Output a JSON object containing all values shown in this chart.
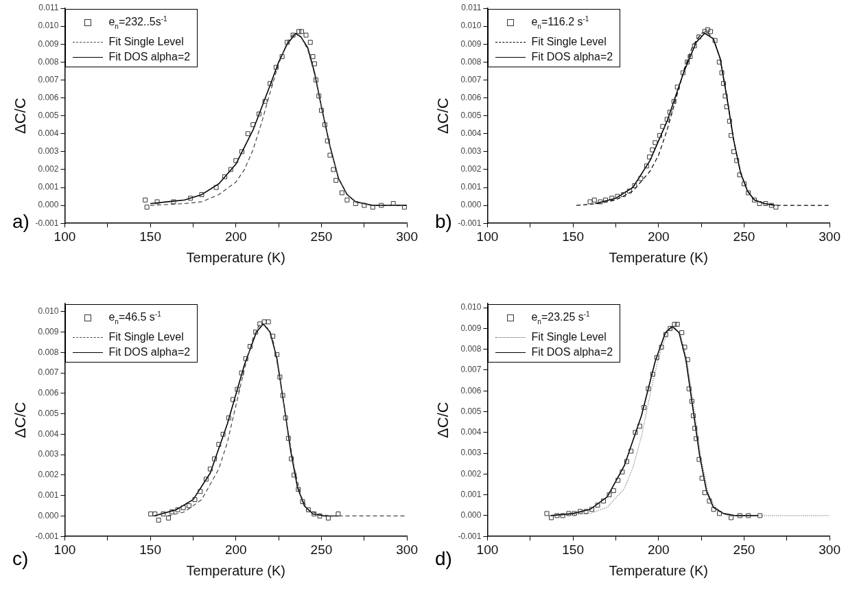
{
  "chart_data": [
    {
      "type": "scatter",
      "xlabel": "Temperature (K)",
      "ylabel": "ΔC/C",
      "annotations": [
        "a)"
      ],
      "legend": "top left",
      "grid": false,
      "xlim": [
        100,
        300
      ],
      "xticks": [
        100,
        {
          "value": 125,
          "label": null
        },
        150,
        {
          "value": 175,
          "label": null
        },
        200,
        {
          "value": 225,
          "label": null
        },
        250,
        {
          "value": 275,
          "label": null
        },
        300
      ],
      "ylim": [
        -0.001,
        0.011
      ],
      "yticks": [
        {
          "value": -0.001,
          "label": "-0.001"
        },
        {
          "value": 0,
          "label": "0.000"
        },
        {
          "value": 0.001,
          "label": "0.001"
        },
        {
          "value": 0.002,
          "label": "0.002"
        },
        {
          "value": 0.003,
          "label": "0.003"
        },
        {
          "value": 0.004,
          "label": "0.004"
        },
        {
          "value": 0.005,
          "label": "0.005"
        },
        {
          "value": 0.006,
          "label": "0.006"
        },
        {
          "value": 0.007,
          "label": "0.007"
        },
        {
          "value": 0.008,
          "label": "0.008"
        },
        {
          "value": 0.009,
          "label": "0.009"
        },
        {
          "value": 0.01,
          "label": "0.010"
        },
        {
          "value": 0.011,
          "label": "0.011"
        }
      ],
      "series": [
        {
          "name": "e$_{n}$=232..5s$^{-1}$",
          "type": "scatter",
          "marker": "square",
          "color": "#333333",
          "x": [
            147,
            148,
            154,
            163.6,
            173.5,
            180,
            188.5,
            193.5,
            197,
            200,
            203.5,
            207,
            210,
            213.5,
            217,
            220,
            223.5,
            227,
            230,
            233.4,
            236.8,
            238.4,
            241,
            243.5,
            245,
            246,
            246.8,
            248.5,
            250,
            252,
            253.5,
            255,
            257,
            258.5,
            262,
            265,
            270,
            275,
            280,
            285,
            292,
            298.5
          ],
          "values": [
            0.0003,
            -0.0001,
            0.0002,
            0.0002,
            0.0004,
            0.0006,
            0.001,
            0.0016,
            0.002,
            0.0025,
            0.003,
            0.004,
            0.0045,
            0.0051,
            0.0058,
            0.0068,
            0.0077,
            0.0083,
            0.0091,
            0.0095,
            0.0097,
            0.0097,
            0.0095,
            0.0091,
            0.0083,
            0.0079,
            0.007,
            0.0061,
            0.0053,
            0.0045,
            0.0036,
            0.0028,
            0.002,
            0.0014,
            0.0007,
            0.0003,
            0.0001,
            0,
            -0.0001,
            0,
            0.0001,
            -0.0001
          ]
        },
        {
          "name": "Fit Single Level",
          "type": "line",
          "line_style": "dashed",
          "marker": "none",
          "color": "#444444",
          "x": [
            150,
            170,
            180,
            190,
            200,
            205,
            210,
            215,
            220,
            225,
            230,
            234,
            238,
            242,
            246,
            250,
            255,
            260,
            265,
            270,
            280,
            300
          ],
          "values": [
            0,
            0.0001,
            0.0002,
            0.0006,
            0.0013,
            0.002,
            0.0031,
            0.0046,
            0.0063,
            0.0079,
            0.0091,
            0.0096,
            0.0094,
            0.0087,
            0.0073,
            0.0055,
            0.0033,
            0.0015,
            0.0006,
            0.0002,
            0,
            0
          ]
        },
        {
          "name": "Fit DOS alpha=2",
          "type": "line",
          "line_style": "solid",
          "marker": "none",
          "color": "#000000",
          "x": [
            150,
            170,
            180,
            190,
            200,
            210,
            220,
            225,
            230,
            235,
            238,
            242,
            246,
            250,
            255,
            260,
            265,
            270,
            280,
            300
          ],
          "values": [
            0.0001,
            0.0003,
            0.0006,
            0.0012,
            0.0023,
            0.0042,
            0.0067,
            0.008,
            0.009,
            0.0096,
            0.0094,
            0.0088,
            0.0074,
            0.0055,
            0.0033,
            0.0015,
            0.0006,
            0.0002,
            0,
            0
          ]
        }
      ]
    },
    {
      "type": "scatter",
      "xlabel": "Temperature (K)",
      "ylabel": "ΔC/C",
      "annotations": [
        "b)"
      ],
      "legend": "top left",
      "grid": false,
      "xlim": [
        100,
        300
      ],
      "xticks": [
        100,
        {
          "value": 125,
          "label": null
        },
        150,
        {
          "value": 175,
          "label": null
        },
        200,
        {
          "value": 225,
          "label": null
        },
        250,
        {
          "value": 275,
          "label": null
        },
        300
      ],
      "ylim": [
        -0.001,
        0.011
      ],
      "yticks": [
        {
          "value": -0.001,
          "label": "-0.001"
        },
        {
          "value": 0,
          "label": "0.000"
        },
        {
          "value": 0.001,
          "label": "0.001"
        },
        {
          "value": 0.002,
          "label": "0.002"
        },
        {
          "value": 0.003,
          "label": "0.003"
        },
        {
          "value": 0.004,
          "label": "0.004"
        },
        {
          "value": 0.005,
          "label": "0.005"
        },
        {
          "value": 0.006,
          "label": "0.006"
        },
        {
          "value": 0.007,
          "label": "0.007"
        },
        {
          "value": 0.008,
          "label": "0.008"
        },
        {
          "value": 0.009,
          "label": "0.009"
        },
        {
          "value": 0.01,
          "label": "0.010"
        },
        {
          "value": 0.011,
          "label": "0.011"
        }
      ],
      "series": [
        {
          "name": "e$_{n}$=116.2 s$^{-1}$",
          "type": "scatter",
          "marker": "square",
          "color": "#333333",
          "x": [
            160,
            162.5,
            166,
            169,
            172.7,
            176,
            179.5,
            183,
            186,
            189.6,
            193,
            194.7,
            196.4,
            198,
            200.7,
            202.4,
            205,
            206.6,
            209,
            211,
            214.3,
            216.8,
            218.5,
            221,
            223.6,
            227,
            228.7,
            230.4,
            233,
            235.5,
            237,
            238,
            239,
            239.8,
            241.5,
            242.4,
            244,
            245.7,
            247.4,
            250,
            252.5,
            256,
            259,
            262.6,
            266,
            268.6
          ],
          "values": [
            0.0002,
            0.0003,
            0.0002,
            0.0003,
            0.0004,
            0.0005,
            0.0006,
            0.0008,
            0.0011,
            0.0015,
            0.0022,
            0.0027,
            0.0031,
            0.0035,
            0.0039,
            0.0044,
            0.0048,
            0.0052,
            0.0058,
            0.0066,
            0.0074,
            0.008,
            0.0083,
            0.0089,
            0.0094,
            0.0097,
            0.0098,
            0.0097,
            0.0092,
            0.008,
            0.0074,
            0.0068,
            0.0061,
            0.0055,
            0.0047,
            0.0039,
            0.003,
            0.0025,
            0.0017,
            0.0012,
            0.0007,
            0.0003,
            0.0001,
            0.0001,
            0,
            -0.0001
          ]
        },
        {
          "name": "Fit Single Level",
          "type": "line",
          "line_style": "dashed",
          "marker": "none",
          "color": "#000000",
          "x": [
            152,
            165,
            175,
            185,
            195,
            200,
            205,
            210,
            215,
            220,
            225,
            228,
            232,
            236,
            240,
            244,
            248,
            252,
            256,
            262,
            270,
            300
          ],
          "values": [
            0,
            0.0001,
            0.0003,
            0.0008,
            0.0019,
            0.0028,
            0.0042,
            0.0059,
            0.0076,
            0.0089,
            0.0096,
            0.0097,
            0.0093,
            0.0082,
            0.006,
            0.0036,
            0.0018,
            0.0008,
            0.0003,
            0.0001,
            0,
            0
          ]
        },
        {
          "name": "Fit DOS alpha=2",
          "type": "line",
          "line_style": "solid",
          "marker": "none",
          "color": "#000000",
          "x": [
            163,
            175,
            185,
            195,
            205,
            215,
            222,
            227,
            232,
            236,
            240,
            244,
            248,
            252,
            256,
            262,
            268
          ],
          "values": [
            0.0001,
            0.0004,
            0.001,
            0.0025,
            0.0047,
            0.0075,
            0.0091,
            0.0096,
            0.0093,
            0.0082,
            0.006,
            0.0036,
            0.0018,
            0.0008,
            0.0003,
            0.0001,
            0
          ]
        }
      ]
    },
    {
      "type": "scatter",
      "xlabel": "Temperature (K)",
      "ylabel": "ΔC/C",
      "annotations": [
        "c)"
      ],
      "legend": "top left",
      "grid": false,
      "xlim": [
        100,
        300
      ],
      "xticks": [
        100,
        {
          "value": 125,
          "label": null
        },
        150,
        {
          "value": 175,
          "label": null
        },
        200,
        {
          "value": 225,
          "label": null
        },
        250,
        {
          "value": 275,
          "label": null
        },
        300
      ],
      "ylim": [
        -0.001,
        0.0104
      ],
      "yticks": [
        {
          "value": -0.001,
          "label": "-0.001"
        },
        {
          "value": 0,
          "label": "0.000"
        },
        {
          "value": 0.001,
          "label": "0.001"
        },
        {
          "value": 0.002,
          "label": "0.002"
        },
        {
          "value": 0.003,
          "label": "0.003"
        },
        {
          "value": 0.004,
          "label": "0.004"
        },
        {
          "value": 0.005,
          "label": "0.005"
        },
        {
          "value": 0.006,
          "label": "0.006"
        },
        {
          "value": 0.007,
          "label": "0.007"
        },
        {
          "value": 0.008,
          "label": "0.008"
        },
        {
          "value": 0.009,
          "label": "0.009"
        },
        {
          "value": 0.01,
          "label": "0.010"
        }
      ],
      "series": [
        {
          "name": "e$_{n}$=46.5 s$^{-1}$",
          "type": "scatter",
          "marker": "square",
          "color": "#333333",
          "x": [
            150.2,
            152.7,
            154.8,
            157.6,
            160.6,
            162.6,
            166,
            169.3,
            172.6,
            176,
            179.2,
            182.6,
            185,
            187.5,
            190,
            192.5,
            195.8,
            198.3,
            200.8,
            203.3,
            205.8,
            208.3,
            211.6,
            214,
            216.6,
            219,
            221.6,
            224,
            225.7,
            227.4,
            229,
            230.7,
            232.4,
            234,
            236.5,
            239,
            242.4,
            245.7,
            249,
            254,
            259.8
          ],
          "values": [
            0.0001,
            0.0001,
            -0.0002,
            0.0001,
            -0.0001,
            0.0002,
            0.0003,
            0.0004,
            0.0005,
            0.0008,
            0.0012,
            0.0018,
            0.0023,
            0.0028,
            0.0035,
            0.004,
            0.0048,
            0.0057,
            0.0062,
            0.007,
            0.0077,
            0.0083,
            0.009,
            0.0094,
            0.0095,
            0.0095,
            0.0088,
            0.0079,
            0.0068,
            0.0059,
            0.0048,
            0.0038,
            0.0028,
            0.002,
            0.0013,
            0.0007,
            0.0003,
            0.0001,
            0,
            -0.0001,
            0.0001
          ]
        },
        {
          "name": "Fit Single Level",
          "type": "line",
          "line_style": "dashed",
          "marker": "none",
          "color": "#444444",
          "x": [
            160,
            170,
            180,
            190,
            195,
            200,
            205,
            210,
            214,
            218,
            222,
            226,
            230,
            234,
            238,
            242,
            248,
            255,
            300
          ],
          "values": [
            0,
            0.0002,
            0.0008,
            0.0023,
            0.0036,
            0.0054,
            0.0072,
            0.0087,
            0.0094,
            0.0093,
            0.0085,
            0.0066,
            0.0044,
            0.0024,
            0.001,
            0.0003,
            0.0001,
            0,
            0
          ]
        },
        {
          "name": "Fit DOS alpha=2",
          "type": "line",
          "line_style": "solid",
          "marker": "none",
          "color": "#000000",
          "x": [
            152,
            165,
            175,
            185,
            195,
            205,
            212,
            216,
            220,
            224,
            228,
            232,
            236,
            240,
            245,
            252,
            260
          ],
          "values": [
            0,
            0.0003,
            0.0008,
            0.0021,
            0.0045,
            0.0074,
            0.009,
            0.0094,
            0.009,
            0.0077,
            0.0055,
            0.0032,
            0.0014,
            0.0005,
            0.0001,
            0,
            0
          ]
        }
      ]
    },
    {
      "type": "scatter",
      "xlabel": "Temperature (K)",
      "ylabel": "ΔC/C",
      "annotations": [
        "d)"
      ],
      "legend": "top left",
      "grid": false,
      "xlim": [
        100,
        300
      ],
      "xticks": [
        100,
        {
          "value": 125,
          "label": null
        },
        150,
        {
          "value": 175,
          "label": null
        },
        200,
        {
          "value": 225,
          "label": null
        },
        250,
        {
          "value": 275,
          "label": null
        },
        300
      ],
      "ylim": [
        -0.001,
        0.0102
      ],
      "yticks": [
        {
          "value": -0.001,
          "label": "-0.001"
        },
        {
          "value": 0,
          "label": "0.000"
        },
        {
          "value": 0.001,
          "label": "0.001"
        },
        {
          "value": 0.002,
          "label": "0.002"
        },
        {
          "value": 0.003,
          "label": "0.003"
        },
        {
          "value": 0.004,
          "label": "0.004"
        },
        {
          "value": 0.005,
          "label": "0.005"
        },
        {
          "value": 0.006,
          "label": "0.006"
        },
        {
          "value": 0.007,
          "label": "0.007"
        },
        {
          "value": 0.008,
          "label": "0.008"
        },
        {
          "value": 0.009,
          "label": "0.009"
        },
        {
          "value": 0.01,
          "label": "0.010"
        }
      ],
      "series": [
        {
          "name": "e$_{n}$=23.25 s$^{-1}$",
          "type": "scatter",
          "marker": "square",
          "color": "#333333",
          "x": [
            134.7,
            137.3,
            140.7,
            144,
            147.5,
            150.8,
            154.2,
            157.6,
            161,
            164.4,
            167.8,
            171.2,
            173.7,
            176.3,
            178.8,
            181.4,
            183.9,
            186.4,
            189,
            191.5,
            194,
            196.6,
            199,
            201.7,
            204.2,
            206.8,
            209.3,
            211,
            213.6,
            215.3,
            217,
            217.8,
            219.5,
            220.3,
            221.2,
            222,
            223.7,
            225.4,
            227,
            229.7,
            232.2,
            235.6,
            242.4,
            247.5,
            252.5,
            259.3
          ],
          "values": [
            0.0001,
            -0.0001,
            0,
            0,
            0.0001,
            0.0001,
            0.0002,
            0.0002,
            0.0003,
            0.0005,
            0.0007,
            0.001,
            0.0012,
            0.0017,
            0.0021,
            0.0026,
            0.0031,
            0.004,
            0.0043,
            0.0052,
            0.0061,
            0.0068,
            0.0076,
            0.0081,
            0.0087,
            0.009,
            0.0092,
            0.0092,
            0.0088,
            0.0081,
            0.0075,
            0.0061,
            0.0055,
            0.0048,
            0.0042,
            0.0037,
            0.0027,
            0.0018,
            0.0011,
            0.0007,
            0.0003,
            0.0001,
            -0.0001,
            0,
            0,
            0
          ]
        },
        {
          "name": "Fit Single Level",
          "type": "line",
          "line_style": "dotted",
          "marker": "none",
          "color": "#555555",
          "x": [
            140,
            160,
            170,
            180,
            185,
            190,
            195,
            200,
            205,
            209,
            213,
            217,
            221,
            225,
            229,
            233,
            240,
            300
          ],
          "values": [
            0,
            0.0001,
            0.0004,
            0.0013,
            0.0023,
            0.0038,
            0.0058,
            0.0076,
            0.0088,
            0.0091,
            0.0087,
            0.0073,
            0.005,
            0.0027,
            0.0011,
            0.0004,
            0,
            0
          ]
        },
        {
          "name": "Fit DOS alpha=2",
          "type": "line",
          "line_style": "solid",
          "marker": "none",
          "color": "#000000",
          "x": [
            137,
            150,
            160,
            170,
            180,
            190,
            198,
            204,
            208,
            212,
            216,
            220,
            224,
            228,
            232,
            238,
            245,
            258
          ],
          "values": [
            0,
            0.0001,
            0.0003,
            0.0009,
            0.0024,
            0.0048,
            0.0074,
            0.0088,
            0.0091,
            0.0088,
            0.0075,
            0.0052,
            0.0029,
            0.0012,
            0.0004,
            0.0001,
            0,
            0
          ]
        }
      ]
    }
  ]
}
